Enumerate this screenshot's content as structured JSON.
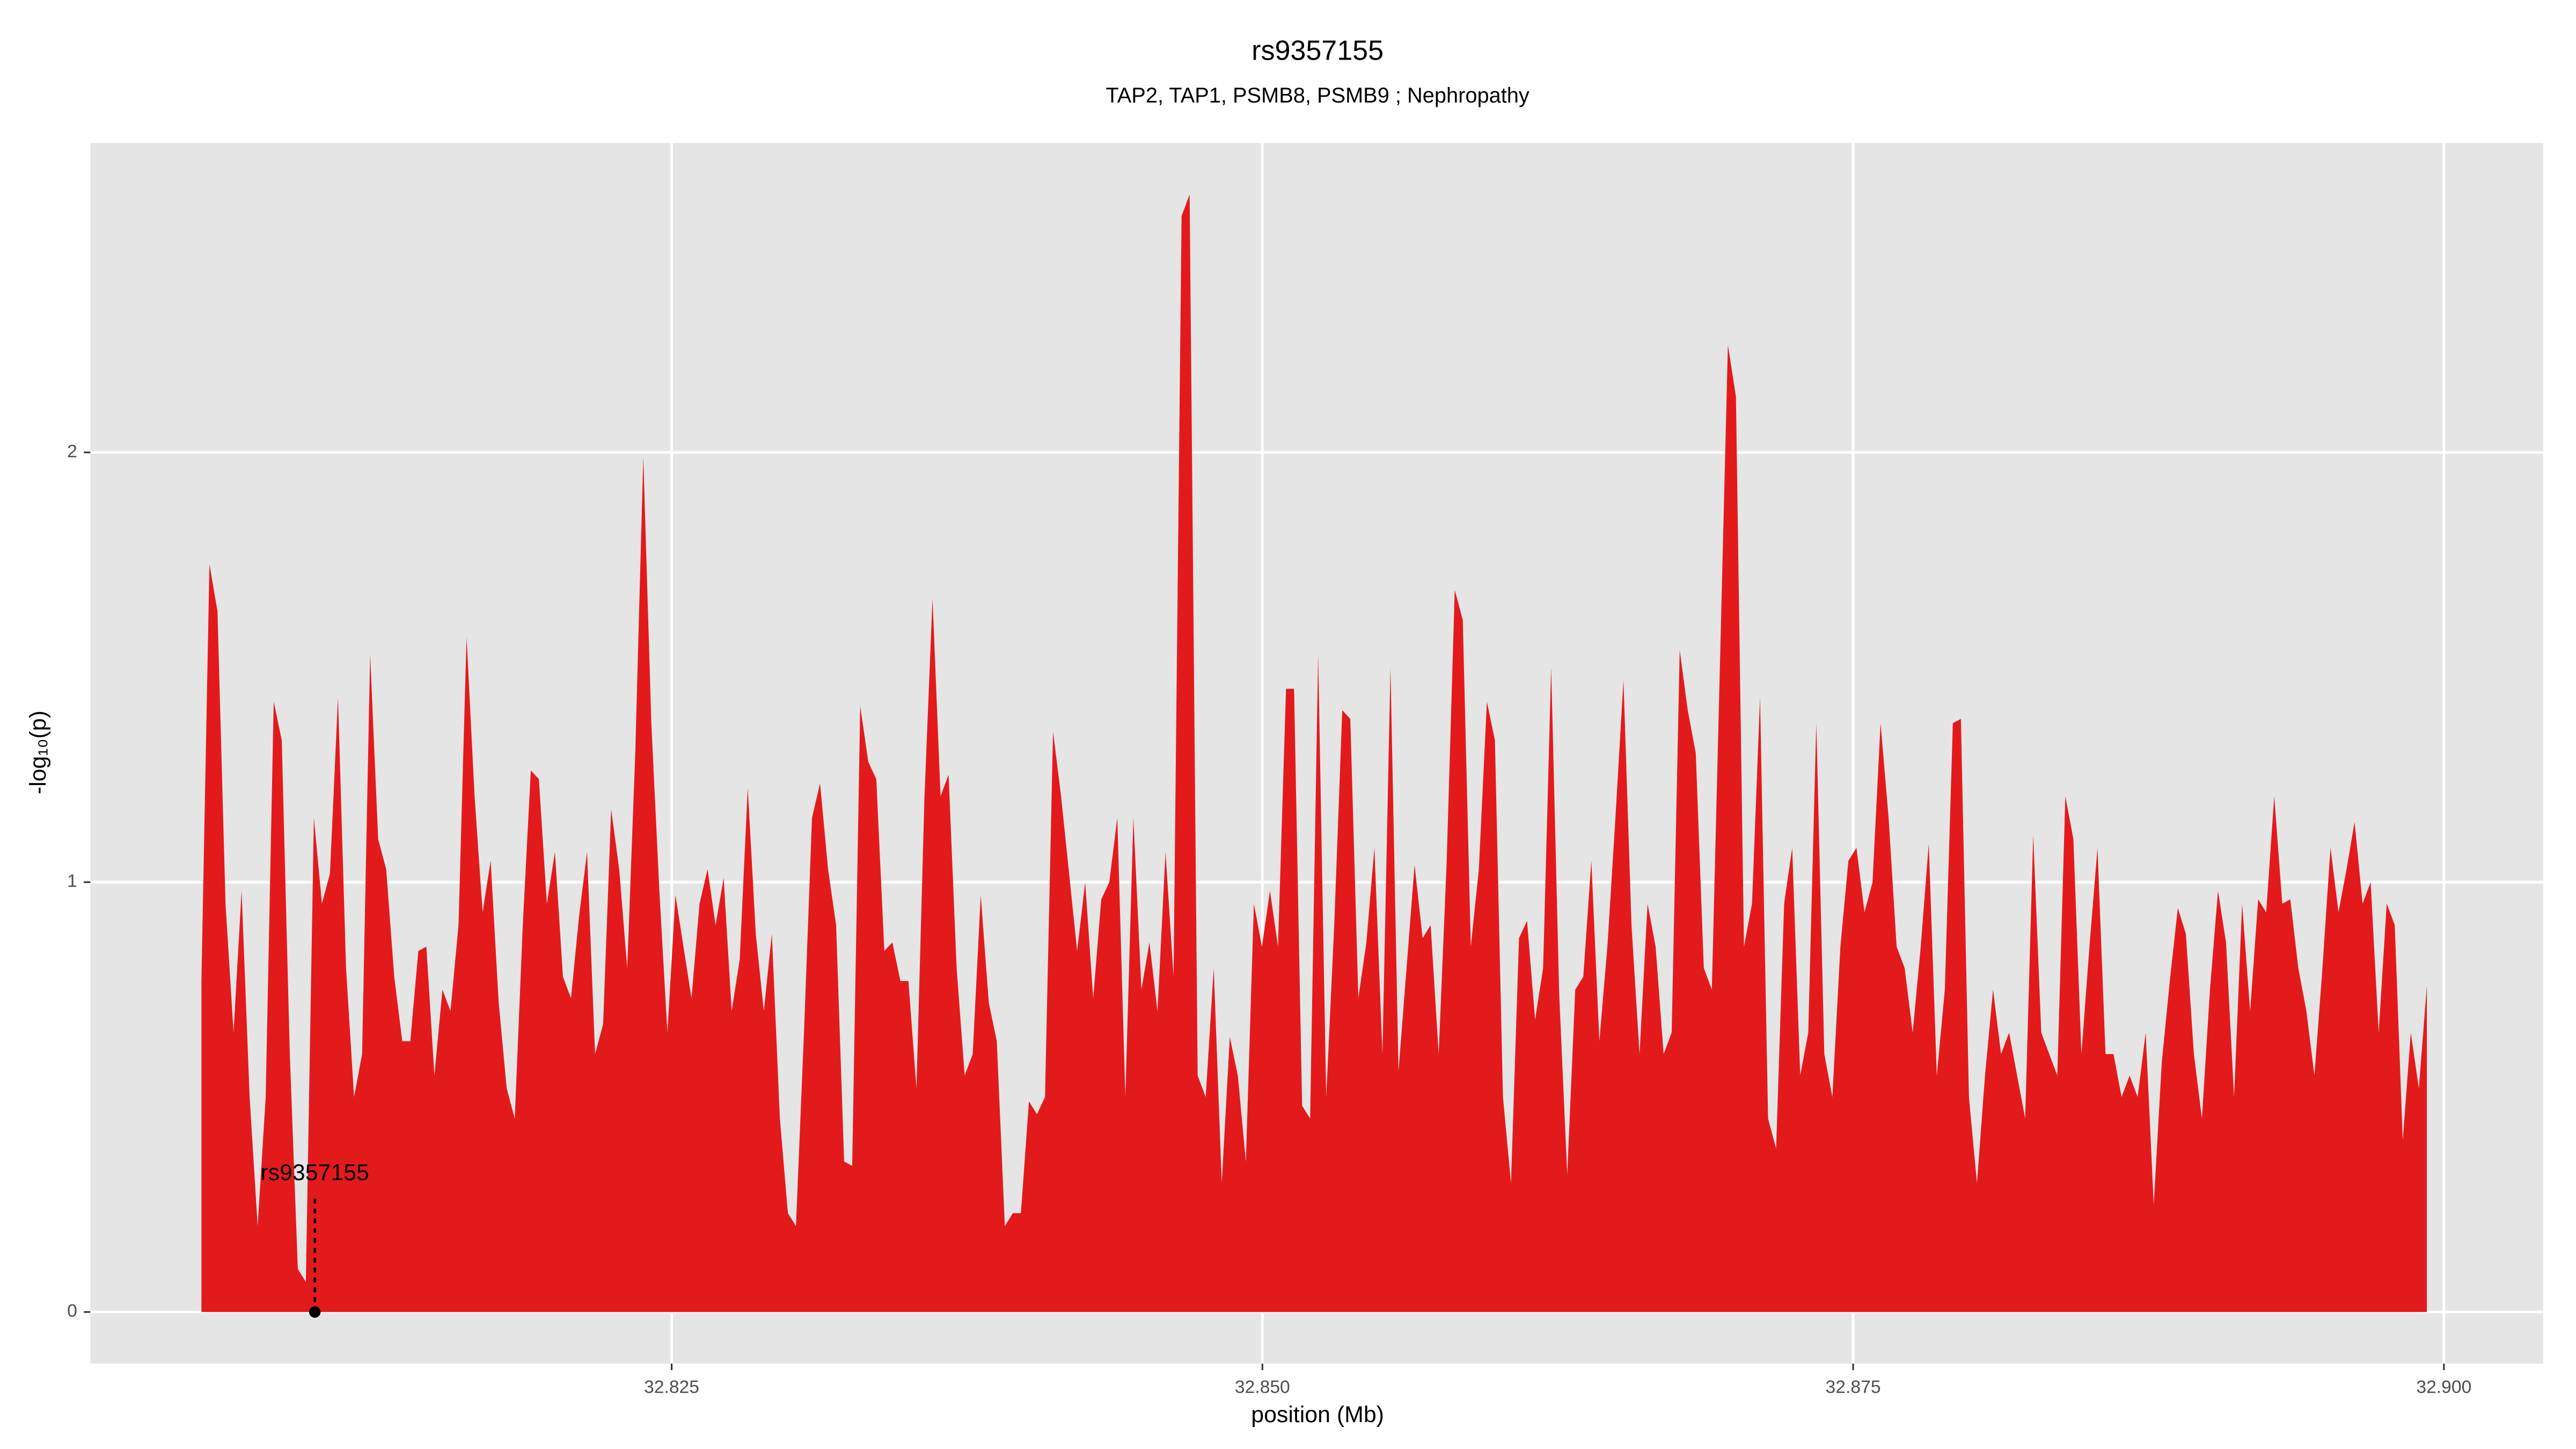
{
  "chart_data": {
    "type": "area",
    "title": "rs9357155",
    "subtitle": "TAP2, TAP1, PSMB8, PSMB9 ; Nephropathy",
    "x_label": "position (Mb)",
    "y_label": "-log₁₀(p)",
    "xlim": [
      32.8004,
      32.9042
    ],
    "ylim": [
      -0.12,
      2.72
    ],
    "xticks": [
      32.825,
      {
        "value": 32.85,
        "label": "32.850"
      },
      32.875,
      {
        "value": 32.9,
        "label": "32.900"
      }
    ],
    "yticks": [
      0,
      1,
      2
    ],
    "grid": true,
    "series": [
      {
        "color": "#e31a1c",
        "x": [
          32.8051,
          32.80544,
          32.80578,
          32.80612,
          32.80646,
          32.8068,
          32.80714,
          32.80748,
          32.80782,
          32.80816,
          32.8085,
          32.80884,
          32.80918,
          32.80952,
          32.80986,
          32.8102,
          32.81054,
          32.81088,
          32.81122,
          32.81156,
          32.8119,
          32.81224,
          32.81258,
          32.81292,
          32.81326,
          32.8136,
          32.81394,
          32.81428,
          32.81462,
          32.81496,
          32.8153,
          32.81564,
          32.81598,
          32.81632,
          32.81666,
          32.817,
          32.81734,
          32.81768,
          32.81802,
          32.81836,
          32.8187,
          32.81904,
          32.81938,
          32.81972,
          32.82006,
          32.8204,
          32.82074,
          32.82108,
          32.82142,
          32.82176,
          32.8221,
          32.82244,
          32.82278,
          32.82312,
          32.82346,
          32.8238,
          32.82414,
          32.82448,
          32.82482,
          32.82516,
          32.8255,
          32.82584,
          32.82618,
          32.82652,
          32.82686,
          32.8272,
          32.82754,
          32.82788,
          32.82822,
          32.82856,
          32.8289,
          32.82924,
          32.82958,
          32.82992,
          32.83026,
          32.8306,
          32.83094,
          32.83128,
          32.83162,
          32.83196,
          32.8323,
          32.83264,
          32.83298,
          32.83332,
          32.83366,
          32.834,
          32.83434,
          32.83468,
          32.83502,
          32.83536,
          32.8357,
          32.83604,
          32.83638,
          32.83672,
          32.83706,
          32.8374,
          32.83774,
          32.83808,
          32.83842,
          32.83876,
          32.8391,
          32.83944,
          32.83978,
          32.84012,
          32.84046,
          32.8408,
          32.84114,
          32.84148,
          32.84182,
          32.84216,
          32.8425,
          32.84284,
          32.84318,
          32.84352,
          32.84386,
          32.8442,
          32.84454,
          32.84488,
          32.84522,
          32.84556,
          32.8459,
          32.84624,
          32.84658,
          32.84692,
          32.84726,
          32.8476,
          32.84794,
          32.84828,
          32.84862,
          32.84896,
          32.8493,
          32.84964,
          32.84998,
          32.85032,
          32.85066,
          32.851,
          32.85134,
          32.85168,
          32.85202,
          32.85236,
          32.8527,
          32.85304,
          32.85338,
          32.85372,
          32.85406,
          32.8544,
          32.85474,
          32.85508,
          32.85542,
          32.85576,
          32.8561,
          32.85644,
          32.85678,
          32.85712,
          32.85746,
          32.8578,
          32.85814,
          32.85848,
          32.85882,
          32.85916,
          32.8595,
          32.85984,
          32.86018,
          32.86052,
          32.86086,
          32.8612,
          32.86154,
          32.86188,
          32.86222,
          32.86256,
          32.8629,
          32.86324,
          32.86358,
          32.86392,
          32.86426,
          32.8646,
          32.86494,
          32.86528,
          32.86562,
          32.86596,
          32.8663,
          32.86664,
          32.86698,
          32.86732,
          32.86766,
          32.868,
          32.86834,
          32.86868,
          32.86902,
          32.86936,
          32.8697,
          32.87004,
          32.87038,
          32.87072,
          32.87106,
          32.8714,
          32.87174,
          32.87208,
          32.87242,
          32.87276,
          32.8731,
          32.87344,
          32.87378,
          32.87412,
          32.87446,
          32.8748,
          32.87514,
          32.87548,
          32.87582,
          32.87616,
          32.8765,
          32.87684,
          32.87718,
          32.87752,
          32.87786,
          32.8782,
          32.87854,
          32.87888,
          32.87922,
          32.87956,
          32.8799,
          32.88024,
          32.88058,
          32.88092,
          32.88126,
          32.8816,
          32.88194,
          32.88228,
          32.88262,
          32.88296,
          32.8833,
          32.88364,
          32.88398,
          32.88432,
          32.88466,
          32.885,
          32.88534,
          32.88568,
          32.88602,
          32.88636,
          32.8867,
          32.88704,
          32.88738,
          32.88772,
          32.88806,
          32.8884,
          32.88874,
          32.88908,
          32.88942,
          32.88976,
          32.8901,
          32.89044,
          32.89078,
          32.89112,
          32.89146,
          32.8918,
          32.89214,
          32.89248,
          32.89282,
          32.89316,
          32.8935,
          32.89384,
          32.89418,
          32.89452,
          32.89486,
          32.8952,
          32.89554,
          32.89588,
          32.89622,
          32.89656,
          32.8969,
          32.89724,
          32.89758,
          32.89792,
          32.89826,
          32.8986,
          32.89894,
          32.89928
        ],
        "values": [
          0.77,
          1.74,
          1.63,
          0.95,
          0.65,
          0.98,
          0.5,
          0.2,
          0.5,
          1.42,
          1.33,
          0.6,
          0.1,
          0.07,
          1.15,
          0.95,
          1.02,
          1.43,
          0.8,
          0.5,
          0.6,
          1.53,
          1.1,
          1.03,
          0.78,
          0.63,
          0.63,
          0.84,
          0.85,
          0.55,
          0.75,
          0.7,
          0.9,
          1.57,
          1.2,
          0.93,
          1.05,
          0.72,
          0.52,
          0.45,
          0.9,
          1.26,
          1.24,
          0.95,
          1.07,
          0.78,
          0.73,
          0.92,
          1.07,
          0.6,
          0.67,
          1.17,
          1.03,
          0.8,
          1.3,
          1.99,
          1.37,
          0.98,
          0.65,
          0.97,
          0.85,
          0.73,
          0.95,
          1.03,
          0.9,
          1.01,
          0.7,
          0.82,
          1.22,
          0.88,
          0.7,
          0.88,
          0.45,
          0.23,
          0.2,
          0.65,
          1.15,
          1.23,
          1.03,
          0.9,
          0.35,
          0.34,
          1.41,
          1.28,
          1.24,
          0.84,
          0.86,
          0.77,
          0.77,
          0.52,
          1.2,
          1.66,
          1.2,
          1.25,
          0.8,
          0.55,
          0.6,
          0.97,
          0.72,
          0.63,
          0.2,
          0.23,
          0.23,
          0.49,
          0.46,
          0.5,
          1.35,
          1.2,
          1.02,
          0.84,
          1.0,
          0.73,
          0.96,
          1.0,
          1.15,
          0.5,
          1.15,
          0.75,
          0.86,
          0.7,
          1.07,
          0.78,
          2.55,
          2.6,
          0.55,
          0.5,
          0.8,
          0.3,
          0.64,
          0.55,
          0.35,
          0.95,
          0.85,
          0.98,
          0.85,
          1.45,
          1.45,
          0.48,
          0.45,
          1.53,
          0.5,
          0.9,
          1.4,
          1.38,
          0.73,
          0.86,
          1.08,
          0.6,
          1.5,
          0.56,
          0.8,
          1.04,
          0.87,
          0.9,
          0.6,
          1.05,
          1.68,
          1.61,
          0.85,
          1.03,
          1.42,
          1.33,
          0.5,
          0.3,
          0.87,
          0.91,
          0.68,
          0.8,
          1.5,
          0.74,
          0.32,
          0.75,
          0.78,
          1.05,
          0.63,
          0.85,
          1.15,
          1.47,
          0.9,
          0.6,
          0.95,
          0.85,
          0.6,
          0.65,
          1.54,
          1.4,
          1.3,
          0.8,
          0.75,
          1.5,
          2.25,
          2.13,
          0.85,
          0.95,
          1.43,
          0.45,
          0.38,
          0.95,
          1.08,
          0.55,
          0.65,
          1.37,
          0.6,
          0.5,
          0.85,
          1.05,
          1.08,
          0.93,
          1.0,
          1.37,
          1.15,
          0.85,
          0.8,
          0.65,
          0.85,
          1.09,
          0.55,
          0.75,
          1.37,
          1.38,
          0.5,
          0.3,
          0.55,
          0.75,
          0.6,
          0.65,
          0.55,
          0.45,
          1.11,
          0.65,
          0.6,
          0.55,
          1.2,
          1.1,
          0.6,
          0.85,
          1.08,
          0.6,
          0.6,
          0.5,
          0.55,
          0.5,
          0.65,
          0.25,
          0.58,
          0.77,
          0.94,
          0.88,
          0.6,
          0.45,
          0.75,
          0.98,
          0.86,
          0.5,
          0.95,
          0.7,
          0.96,
          0.93,
          1.2,
          0.95,
          0.96,
          0.8,
          0.7,
          0.55,
          0.8,
          1.08,
          0.93,
          1.03,
          1.14,
          0.95,
          1.0,
          0.65,
          0.95,
          0.9,
          0.4,
          0.65,
          0.52,
          0.76
        ]
      }
    ],
    "annotation": {
      "text": "rs9357155",
      "x": 32.8099,
      "y": 0
    }
  }
}
